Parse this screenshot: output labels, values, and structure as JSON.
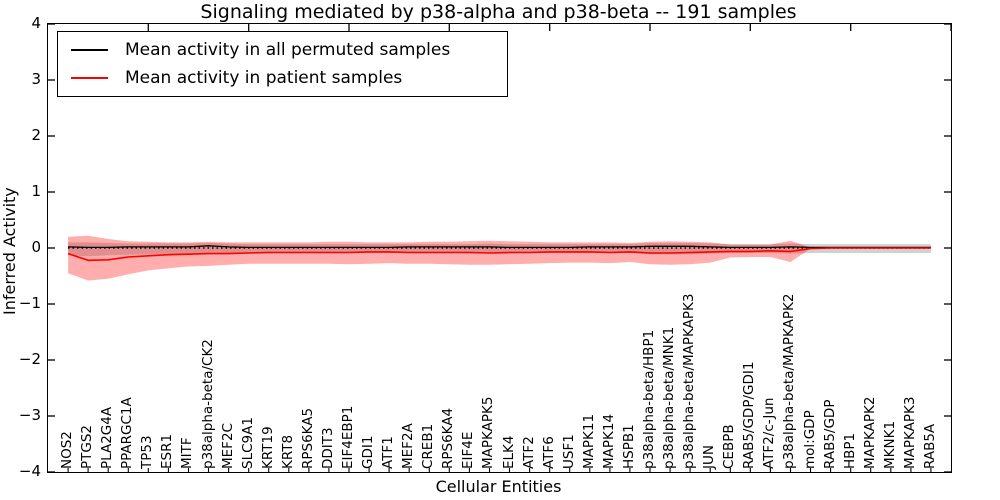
{
  "chart_data": {
    "type": "line",
    "title": "Signaling mediated by p38-alpha and p38-beta -- 191 samples",
    "xlabel": "Cellular Entities",
    "ylabel": "Inferred Activity",
    "ylim": [
      -4,
      4
    ],
    "xlim": [
      0,
      45
    ],
    "grid": false,
    "yticks": [
      4,
      3,
      2,
      1,
      0,
      -1,
      -2,
      -3,
      -4
    ],
    "ytick_labels": [
      "4",
      "3",
      "2",
      "1",
      "0",
      "−1",
      "−2",
      "−3",
      "−4"
    ],
    "top_axis_tick_positions": [
      5,
      10,
      15,
      20,
      25,
      30,
      35,
      40,
      45
    ],
    "legend": {
      "position": "upper left"
    },
    "zero_line": {
      "y": 0,
      "style": "dotted",
      "color": "#000000"
    },
    "categories": [
      "NOS2",
      "PTGS2",
      "PLA2G4A",
      "PPARGC1A",
      "TP53",
      "ESR1",
      "MITF",
      "p38alpha-beta/CK2",
      "MEF2C",
      "SLC9A1",
      "KRT19",
      "KRT8",
      "RPS6KA5",
      "DDIT3",
      "EIF4EBP1",
      "GDI1",
      "ATF1",
      "MEF2A",
      "CREB1",
      "RPS6KA4",
      "EIF4E",
      "MAPKAPK5",
      "ELK4",
      "ATF2",
      "ATF6",
      "USF1",
      "MAPK11",
      "MAPK14",
      "HSPB1",
      "p38alpha-beta/HBP1",
      "p38alpha-beta/MNK1",
      "p38alpha-beta/MAPKAPK3",
      "JUN",
      "CEBPB",
      "RAB5/GDP/GDI1",
      "ATF2/c-Jun",
      "p38alpha-beta/MAPKAPK2",
      "mol:GDP",
      "RAB5/GDP",
      "HBP1",
      "MAPKAPK2",
      "MKNK1",
      "MAPKAPK3",
      "RAB5A"
    ],
    "series": [
      {
        "name": "Mean activity in all permuted samples",
        "color": "#000000",
        "values": [
          0.02,
          0.01,
          0.01,
          0.02,
          0.02,
          0.02,
          0.02,
          0.04,
          0.02,
          0.01,
          0.01,
          0.01,
          0.01,
          0.01,
          0.01,
          0.01,
          0.01,
          0.02,
          0.02,
          0.02,
          0.02,
          0.02,
          0.01,
          0.01,
          0.01,
          0.01,
          0.02,
          0.02,
          0.02,
          0.03,
          0.03,
          0.03,
          0.02,
          0.01,
          0.01,
          0.01,
          0.02,
          0.01,
          0.01,
          0.01,
          0.01,
          0.01,
          0.01,
          0.01
        ],
        "band": {
          "upper": [
            0.1,
            0.1,
            0.09,
            0.08,
            0.08,
            0.08,
            0.08,
            0.09,
            0.08,
            0.07,
            0.07,
            0.07,
            0.07,
            0.07,
            0.07,
            0.07,
            0.07,
            0.07,
            0.07,
            0.07,
            0.07,
            0.08,
            0.07,
            0.07,
            0.07,
            0.07,
            0.07,
            0.07,
            0.07,
            0.09,
            0.09,
            0.09,
            0.08,
            0.07,
            0.07,
            0.07,
            0.08,
            0.07,
            0.07,
            0.07,
            0.07,
            0.07,
            0.07,
            0.07
          ],
          "lower": [
            -0.13,
            -0.15,
            -0.13,
            -0.12,
            -0.11,
            -0.11,
            -0.1,
            -0.1,
            -0.1,
            -0.09,
            -0.09,
            -0.09,
            -0.09,
            -0.09,
            -0.09,
            -0.09,
            -0.09,
            -0.09,
            -0.09,
            -0.09,
            -0.09,
            -0.1,
            -0.09,
            -0.09,
            -0.09,
            -0.09,
            -0.09,
            -0.09,
            -0.09,
            -0.11,
            -0.11,
            -0.11,
            -0.1,
            -0.09,
            -0.09,
            -0.09,
            -0.1,
            -0.09,
            -0.09,
            -0.09,
            -0.09,
            -0.09,
            -0.09,
            -0.09
          ],
          "color": "#999999",
          "opacity": 0.45
        }
      },
      {
        "name": "Mean activity in patient samples",
        "color": "#ff0000",
        "values": [
          -0.1,
          -0.22,
          -0.21,
          -0.16,
          -0.14,
          -0.12,
          -0.11,
          -0.1,
          -0.1,
          -0.09,
          -0.08,
          -0.08,
          -0.08,
          -0.08,
          -0.08,
          -0.07,
          -0.07,
          -0.08,
          -0.08,
          -0.08,
          -0.08,
          -0.09,
          -0.08,
          -0.08,
          -0.07,
          -0.07,
          -0.07,
          -0.08,
          -0.07,
          -0.09,
          -0.09,
          -0.08,
          -0.07,
          -0.06,
          -0.06,
          -0.05,
          -0.06,
          -0.01,
          0.0,
          0.0,
          0.0,
          0.0,
          0.0,
          0.0
        ],
        "band": {
          "upper": [
            0.2,
            0.22,
            0.16,
            0.12,
            0.11,
            0.1,
            0.1,
            0.11,
            0.1,
            0.1,
            0.1,
            0.1,
            0.1,
            0.11,
            0.11,
            0.1,
            0.1,
            0.1,
            0.11,
            0.11,
            0.12,
            0.13,
            0.12,
            0.11,
            0.1,
            0.1,
            0.1,
            0.1,
            0.09,
            0.11,
            0.12,
            0.11,
            0.1,
            0.06,
            0.06,
            0.06,
            0.13,
            0.01,
            0.01,
            0.01,
            0.01,
            0.01,
            0.01,
            0.01
          ],
          "lower": [
            -0.45,
            -0.58,
            -0.55,
            -0.47,
            -0.4,
            -0.36,
            -0.33,
            -0.32,
            -0.3,
            -0.28,
            -0.28,
            -0.28,
            -0.28,
            -0.28,
            -0.29,
            -0.28,
            -0.27,
            -0.28,
            -0.28,
            -0.29,
            -0.3,
            -0.3,
            -0.29,
            -0.28,
            -0.27,
            -0.26,
            -0.26,
            -0.27,
            -0.25,
            -0.29,
            -0.3,
            -0.29,
            -0.26,
            -0.17,
            -0.16,
            -0.16,
            -0.25,
            -0.01,
            -0.01,
            -0.01,
            -0.01,
            -0.01,
            -0.01,
            -0.01
          ],
          "color": "#ff0000",
          "opacity": 0.32
        }
      }
    ]
  }
}
